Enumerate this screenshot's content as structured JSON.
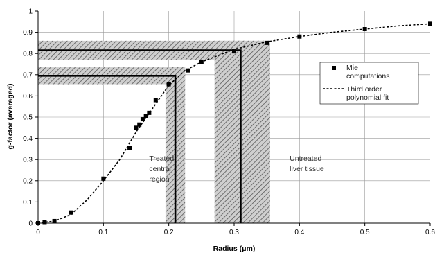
{
  "chart_data": {
    "type": "scatter",
    "xlabel": "Radius (μm)",
    "ylabel": "g-factor (averaged)",
    "xlim": [
      0,
      0.6
    ],
    "ylim": [
      0,
      1
    ],
    "x_ticks": [
      "0",
      "0.1",
      "0.2",
      "0.3",
      "0.4",
      "0.5",
      "0.6"
    ],
    "y_ticks": [
      "0",
      "0.1",
      "0.2",
      "0.3",
      "0.4",
      "0.5",
      "0.6",
      "0.7",
      "0.8",
      "0.9",
      "1"
    ],
    "grid": {
      "horizontal": true,
      "vertical": true
    },
    "legend_position": "right",
    "series": [
      {
        "name": "Mie computations",
        "style": "markers",
        "marker": "square",
        "color": "#000000",
        "x": [
          0,
          0.01,
          0.025,
          0.05,
          0.1,
          0.14,
          0.15,
          0.155,
          0.16,
          0.165,
          0.17,
          0.18,
          0.2,
          0.23,
          0.25,
          0.3,
          0.35,
          0.4,
          0.5,
          0.6
        ],
        "y": [
          0,
          0.005,
          0.01,
          0.05,
          0.21,
          0.355,
          0.45,
          0.465,
          0.49,
          0.505,
          0.52,
          0.58,
          0.655,
          0.72,
          0.76,
          0.81,
          0.85,
          0.88,
          0.915,
          0.94
        ]
      },
      {
        "name": "Third order polynomial fit",
        "style": "dashed-line",
        "color": "#000000",
        "x": [
          0,
          0.025,
          0.05,
          0.075,
          0.1,
          0.125,
          0.15,
          0.175,
          0.2,
          0.225,
          0.25,
          0.275,
          0.3,
          0.35,
          0.4,
          0.45,
          0.5,
          0.55,
          0.6
        ],
        "y": [
          0,
          0.01,
          0.04,
          0.11,
          0.2,
          0.3,
          0.43,
          0.54,
          0.65,
          0.72,
          0.76,
          0.79,
          0.82,
          0.855,
          0.88,
          0.9,
          0.915,
          0.93,
          0.94
        ]
      }
    ],
    "regions": [
      {
        "label": "Treated central region",
        "x_range": [
          0.195,
          0.225
        ],
        "x_center": 0.21,
        "y_range": [
          0.655,
          0.735
        ],
        "y_center": 0.695,
        "text_x": 0.17,
        "text_lines": [
          "Treated",
          "central",
          "region"
        ]
      },
      {
        "label": "Untreated liver tissue",
        "x_range": [
          0.27,
          0.355
        ],
        "x_center": 0.31,
        "y_range": [
          0.77,
          0.86
        ],
        "y_center": 0.815,
        "text_x": 0.385,
        "text_lines": [
          "Untreated",
          "liver tissue"
        ]
      }
    ],
    "legend": {
      "entries": [
        {
          "lines": [
            "Mie",
            "computations"
          ],
          "style": "square"
        },
        {
          "lines": [
            "Third order",
            "polynomial fit"
          ],
          "style": "dashed"
        }
      ]
    }
  }
}
